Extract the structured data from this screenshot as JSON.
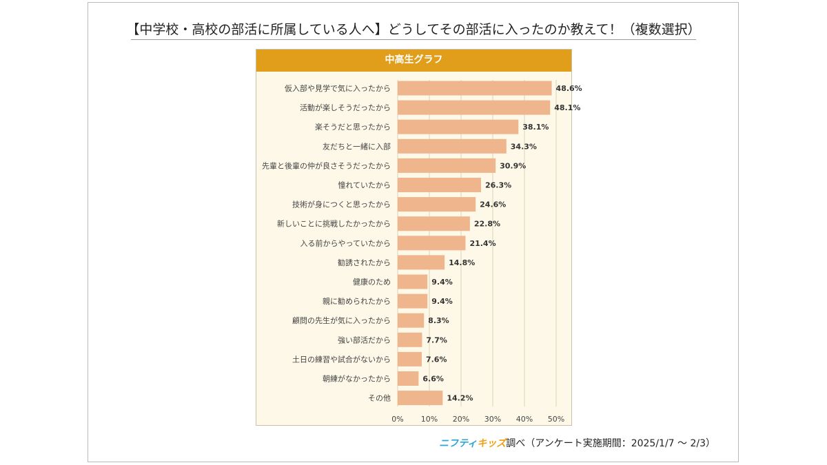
{
  "title": "【中学校・高校の部活に所属している人へ】どうしてその部活に入ったのか教えて！（複数選択）",
  "chart_data": {
    "type": "bar",
    "orientation": "horizontal",
    "title": "中高生グラフ",
    "categories": [
      "仮入部や見学で気に入ったから",
      "活動が楽しそうだったから",
      "楽そうだと思ったから",
      "友だちと一緒に入部",
      "先輩と後輩の仲が良さそうだったから",
      "憧れていたから",
      "技術が身につくと思ったから",
      "新しいことに挑戦したかったから",
      "入る前からやっていたから",
      "勧誘されたから",
      "健康のため",
      "親に勧められたから",
      "顧問の先生が気に入ったから",
      "強い部活だから",
      "土日の練習や試合がないから",
      "朝練がなかったから",
      "その他"
    ],
    "values": [
      48.6,
      48.1,
      38.1,
      34.3,
      30.9,
      26.3,
      24.6,
      22.8,
      21.4,
      14.8,
      9.4,
      9.4,
      8.3,
      7.7,
      7.6,
      6.6,
      14.2
    ],
    "value_labels": [
      "48.6%",
      "48.1%",
      "38.1%",
      "34.3%",
      "30.9%",
      "26.3%",
      "24.6%",
      "22.8%",
      "21.4%",
      "14.8%",
      "9.4%",
      "9.4%",
      "8.3%",
      "7.7%",
      "7.6%",
      "6.6%",
      "14.2%"
    ],
    "xlim": [
      0,
      50
    ],
    "ticks": [
      0,
      10,
      20,
      30,
      40,
      50
    ],
    "tick_labels": [
      "0%",
      "10%",
      "20%",
      "30%",
      "40%",
      "50%"
    ],
    "grid": true,
    "colors": {
      "bar": "#efb68e",
      "header": "#e09e1b",
      "panel": "#fdf8e7",
      "grid": "#d9d2bc"
    }
  },
  "source": {
    "logo_part1": "ニフティ",
    "logo_part2": "キッズ",
    "text": "調べ（アンケート実施期間：2025/1/7 ～ 2/3）"
  }
}
